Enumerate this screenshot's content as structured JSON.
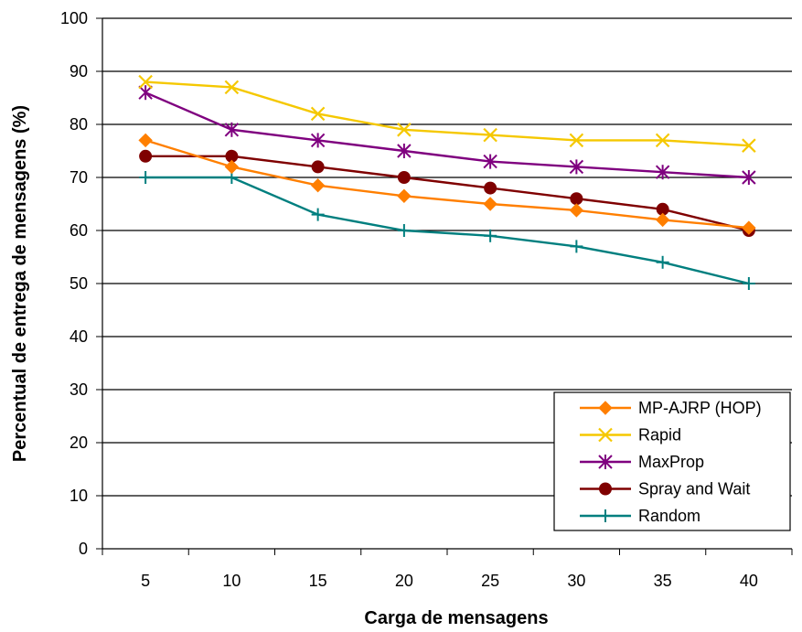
{
  "chart_data": {
    "type": "line",
    "title": "",
    "xlabel": "Carga de mensagens",
    "ylabel": "Percentual de entrega de mensagens (%)",
    "categories": [
      "5",
      "10",
      "15",
      "20",
      "25",
      "30",
      "35",
      "40"
    ],
    "y_ticks": [
      "0",
      "10",
      "20",
      "30",
      "40",
      "50",
      "60",
      "70",
      "80",
      "90",
      "100"
    ],
    "ylim": [
      0,
      100
    ],
    "grid": "horizontal",
    "legend_position": "bottom-right",
    "series": [
      {
        "name": "MP-AJRP (HOP)",
        "color": "#FF7F00",
        "marker": "diamond",
        "values": [
          77,
          72,
          68.5,
          66.5,
          65,
          63.8,
          62,
          60.5
        ]
      },
      {
        "name": "Rapid",
        "color": "#F5C800",
        "marker": "x",
        "values": [
          88,
          87,
          82,
          79,
          78,
          77,
          77,
          76
        ]
      },
      {
        "name": "MaxProp",
        "color": "#7F007F",
        "marker": "asterisk",
        "values": [
          86,
          79,
          77,
          75,
          73,
          72,
          71,
          70
        ]
      },
      {
        "name": "Spray and Wait",
        "color": "#7F0000",
        "marker": "circle",
        "values": [
          74,
          74,
          72,
          70,
          68,
          66,
          64,
          60
        ]
      },
      {
        "name": "Random",
        "color": "#007F7F",
        "marker": "plus",
        "values": [
          70,
          70,
          63,
          60,
          59,
          57,
          54,
          50
        ]
      }
    ]
  }
}
